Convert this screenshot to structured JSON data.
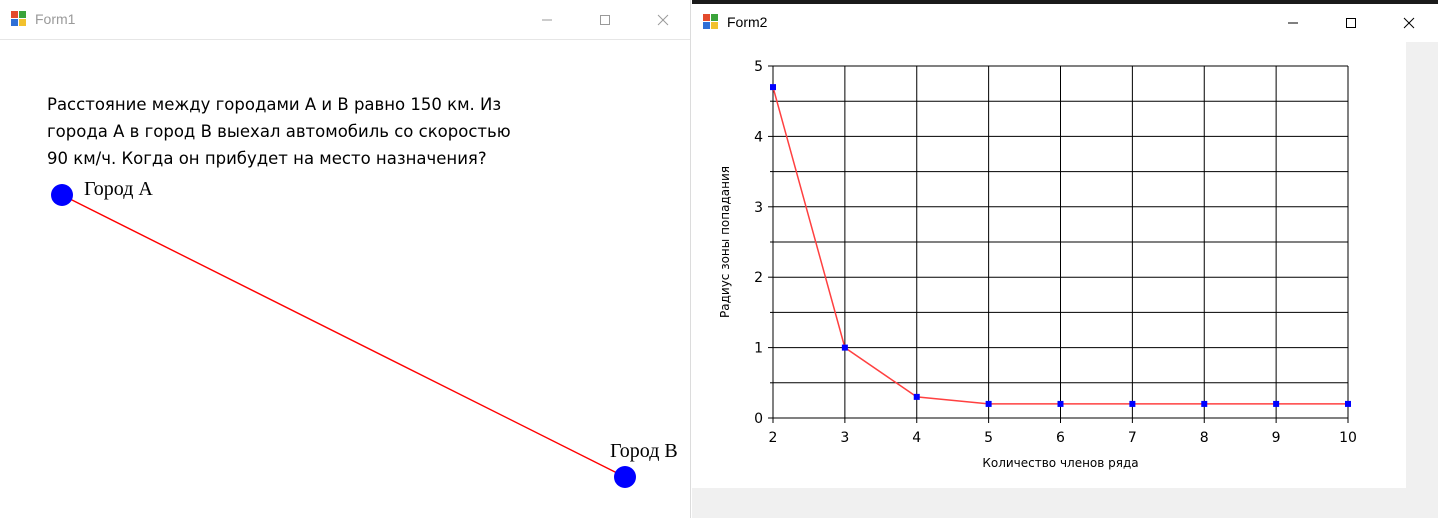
{
  "form1": {
    "title": "Form1",
    "problem_line1": "Расстояние между городами A и B равно 150 км. Из",
    "problem_line2": "города A в город B выехал автомобиль со скоростью",
    "problem_line3": "90 км/ч. Когда он прибудет на место назначения?",
    "city_a_label": "Город А",
    "city_b_label": "Город В",
    "colors": {
      "city_dot": "#0000ff",
      "route_line": "#ff0000"
    }
  },
  "form2": {
    "title": "Form2"
  },
  "window_controls": {
    "minimize_icon": "minimize-icon",
    "maximize_icon": "maximize-icon",
    "close_icon": "close-icon"
  },
  "chart_data": {
    "type": "line",
    "x": [
      2,
      3,
      4,
      5,
      6,
      7,
      8,
      9,
      10
    ],
    "series": [
      {
        "values": [
          4.7,
          1.0,
          0.3,
          0.2,
          0.2,
          0.2,
          0.2,
          0.2,
          0.2
        ],
        "color": "#ff4040",
        "marker_color": "#0000ff"
      }
    ],
    "xlabel": "Количество членов ряда",
    "ylabel": "Радиус зоны попадания",
    "xlim": [
      2,
      10
    ],
    "ylim": [
      0,
      5
    ],
    "xticks": [
      "2",
      "3",
      "4",
      "5",
      "6",
      "7",
      "8",
      "9",
      "10"
    ],
    "yticks": [
      "0",
      "1",
      "2",
      "3",
      "4",
      "5"
    ],
    "grid": true
  }
}
